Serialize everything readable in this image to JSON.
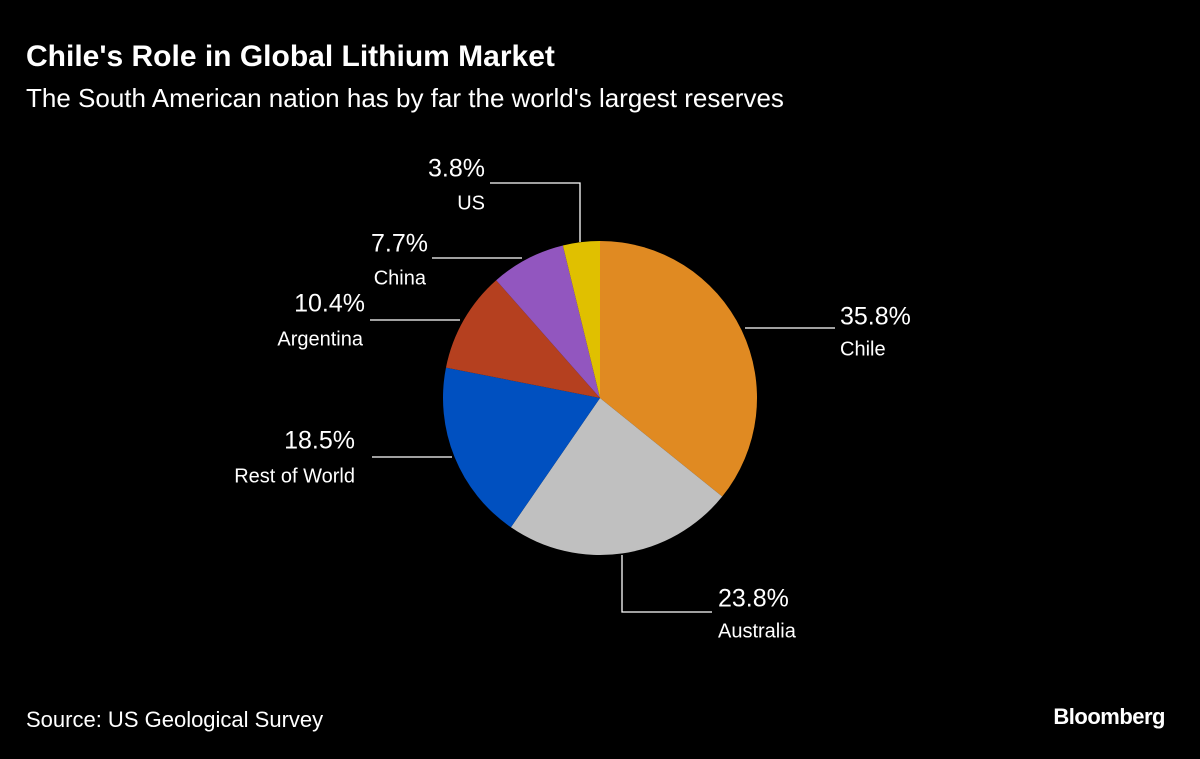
{
  "chart_data": {
    "type": "pie",
    "title": "Chile's Role in Global Lithium Market",
    "subtitle": "The South American nation has by far the world's largest reserves",
    "categories": [
      "Chile",
      "Australia",
      "Rest of World",
      "Argentina",
      "China",
      "US"
    ],
    "values": [
      35.8,
      23.8,
      18.5,
      10.4,
      7.7,
      3.8
    ],
    "value_labels": [
      "35.8%",
      "23.8%",
      "18.5%",
      "10.4%",
      "7.7%",
      "3.8%"
    ],
    "colors": [
      "#e08a22",
      "#c0c0c0",
      "#0050c0",
      "#b5401f",
      "#9256bf",
      "#e0c000"
    ],
    "source": "Source: US Geological Survey",
    "brand": "Bloomberg"
  }
}
